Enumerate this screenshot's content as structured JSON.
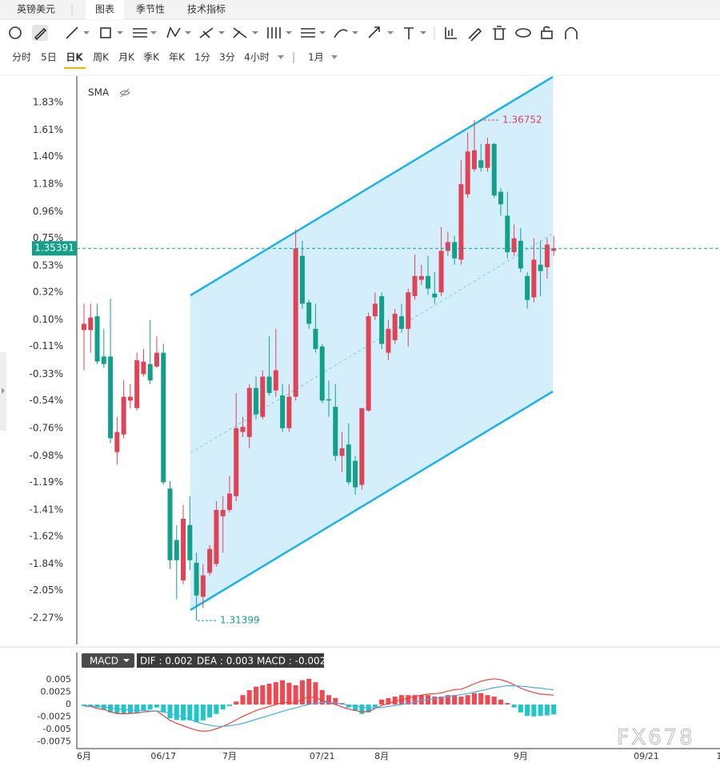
{
  "tabs": {
    "symbol": "英镑美元",
    "items": [
      "图表",
      "季节性",
      "技术指标"
    ]
  },
  "timeframes": [
    "分时",
    "5日",
    "日K",
    "周K",
    "月K",
    "季K",
    "年K",
    "1分",
    "3分",
    "4小时"
  ],
  "range": "1月",
  "watermark": "FX678",
  "chart_data": [
    {
      "type": "candlestick",
      "indicator": "SMA",
      "ylim": [
        -2.48,
        2.04
      ],
      "yticks": [
        {
          "value": 1.83,
          "label": "1.83%"
        },
        {
          "value": 1.61,
          "label": "1.61%"
        },
        {
          "value": 1.4,
          "label": "1.40%"
        },
        {
          "value": 1.18,
          "label": "1.18%"
        },
        {
          "value": 0.96,
          "label": "0.96%"
        },
        {
          "value": 0.75,
          "label": "0.75%"
        },
        {
          "value": 0.53,
          "label": "0.53%"
        },
        {
          "value": 0.32,
          "label": "0.32%"
        },
        {
          "value": 0.1,
          "label": "0.10%"
        },
        {
          "value": -0.11,
          "label": "-0.11%"
        },
        {
          "value": -0.33,
          "label": "-0.33%"
        },
        {
          "value": -0.54,
          "label": "-0.54%"
        },
        {
          "value": -0.76,
          "label": "-0.76%"
        },
        {
          "value": -0.98,
          "label": "-0.98%"
        },
        {
          "value": -1.19,
          "label": "-1.19%"
        },
        {
          "value": -1.41,
          "label": "-1.41%"
        },
        {
          "value": -1.62,
          "label": "-1.62%"
        },
        {
          "value": -1.84,
          "label": "-1.84%"
        },
        {
          "value": -2.05,
          "label": "-2.05%"
        },
        {
          "value": -2.27,
          "label": "-2.27%"
        }
      ],
      "colors": {
        "up": "#e04356",
        "down": "#12a08a"
      },
      "open": [
        0.02,
        0.02,
        0.13,
        -0.19,
        -0.19,
        -0.95,
        -0.81,
        -0.54,
        -0.6,
        -0.33,
        -0.25,
        -0.27,
        -0.16,
        -1.24,
        -1.65,
        -1.97,
        -1.53,
        -1.83,
        -2.1,
        -1.91,
        -1.84,
        -1.46,
        -1.41,
        -1.3,
        -0.79,
        -0.83,
        -0.44,
        -0.67,
        -0.35,
        -0.46,
        -0.5,
        -0.76,
        -0.51,
        0.61,
        0.24,
        0.03,
        -0.11,
        -0.53,
        -0.59,
        -0.98,
        -0.89,
        -1.02,
        -1.21,
        -0.62,
        0.13,
        0.29,
        -0.16,
        -0.06,
        0.13,
        0.03,
        0.29,
        0.42,
        0.45,
        0.31,
        0.32,
        0.65,
        0.72,
        0.58,
        1.1,
        1.3,
        1.37,
        1.31,
        1.5,
        1.12,
        0.93,
        0.64,
        0.73,
        0.45,
        0.28,
        0.54,
        0.52,
        0.65
      ],
      "high": [
        0.23,
        0.23,
        0.23,
        0.03,
        0.27,
        -0.67,
        -0.38,
        -0.41,
        -0.16,
        -0.13,
        0.1,
        -0.03,
        -0.09,
        -1.18,
        -1.53,
        -1.37,
        -1.3,
        -1.75,
        -1.84,
        -1.69,
        -1.34,
        -1.3,
        -1.14,
        -0.48,
        -0.67,
        -0.41,
        -0.35,
        -0.3,
        -0.03,
        0.03,
        -0.41,
        -0.41,
        0.82,
        0.73,
        0.26,
        0.23,
        -0.09,
        -0.38,
        -0.41,
        -0.79,
        -0.72,
        -0.98,
        -0.6,
        0.16,
        0.32,
        0.32,
        0.1,
        0.19,
        0.23,
        0.35,
        0.62,
        0.54,
        0.61,
        0.48,
        0.84,
        0.8,
        0.77,
        1.37,
        1.59,
        1.69,
        1.5,
        1.55,
        1.51,
        1.15,
        1.12,
        0.86,
        0.83,
        0.48,
        0.75,
        0.73,
        0.75,
        0.77
      ],
      "low": [
        -0.3,
        -0.16,
        -0.25,
        -0.28,
        -0.88,
        -1.05,
        -0.84,
        -0.6,
        -0.62,
        -0.35,
        -0.41,
        -0.28,
        -1.21,
        -1.88,
        -2.12,
        -2.0,
        -1.89,
        -2.29,
        -2.19,
        -1.93,
        -1.86,
        -1.75,
        -1.43,
        -1.34,
        -0.83,
        -0.92,
        -0.69,
        -0.69,
        -0.5,
        -0.51,
        -0.79,
        -0.79,
        -0.54,
        0.19,
        0.03,
        -0.16,
        -0.56,
        -0.67,
        -1.02,
        -1.11,
        -1.21,
        -1.29,
        -1.25,
        -0.63,
        0.1,
        -0.13,
        -0.22,
        -0.09,
        0.0,
        -0.11,
        0.26,
        0.38,
        0.3,
        0.23,
        0.29,
        0.61,
        0.54,
        0.54,
        1.07,
        1.28,
        1.28,
        1.28,
        1.07,
        0.93,
        0.59,
        0.61,
        0.48,
        0.19,
        0.24,
        0.29,
        0.43,
        0.61
      ],
      "close": [
        0.07,
        0.12,
        -0.23,
        -0.25,
        -0.84,
        -0.79,
        -0.51,
        -0.51,
        -0.22,
        -0.23,
        -0.38,
        -0.16,
        -1.19,
        -1.81,
        -1.81,
        -1.48,
        -1.81,
        -2.09,
        -1.93,
        -1.72,
        -1.41,
        -1.41,
        -1.28,
        -0.76,
        -0.75,
        -0.44,
        -0.65,
        -0.35,
        -0.48,
        -0.3,
        -0.76,
        -0.51,
        0.67,
        0.23,
        0.07,
        -0.13,
        -0.54,
        -0.54,
        -0.98,
        -0.92,
        -1.19,
        -1.23,
        -0.6,
        0.13,
        0.23,
        -0.09,
        0.03,
        0.15,
        0.03,
        0.32,
        0.45,
        0.45,
        0.35,
        0.28,
        0.65,
        0.72,
        0.59,
        1.18,
        1.44,
        1.45,
        1.31,
        1.5,
        1.09,
        1.02,
        0.64,
        0.75,
        0.51,
        0.26,
        0.58,
        0.49,
        0.7,
        0.67
      ],
      "annotations": [
        {
          "value": 1.69,
          "label": "1.36752"
        },
        {
          "value": -2.29,
          "label": "1.31399"
        }
      ],
      "last_price": {
        "value": 0.67,
        "label": "1.35391"
      }
    },
    {
      "type": "macd",
      "indicator": "MACD",
      "legend": [
        "DIF : 0.002",
        "DEA : 0.003",
        "MACD : -0.002"
      ],
      "categories": [
        "6月",
        null,
        null,
        null,
        null,
        null,
        null,
        null,
        null,
        null,
        null,
        null,
        "06/17",
        null,
        null,
        null,
        null,
        null,
        null,
        null,
        null,
        null,
        "7月",
        null,
        null,
        null,
        null,
        null,
        null,
        null,
        null,
        null,
        null,
        null,
        null,
        null,
        "07/21",
        null,
        null,
        null,
        null,
        null,
        null,
        null,
        null,
        "8月",
        null,
        null,
        null,
        null,
        null,
        null,
        null,
        null,
        null,
        null,
        null,
        null,
        null,
        null,
        null,
        null,
        null,
        null,
        null,
        null,
        "9月",
        null,
        null,
        null,
        null,
        null,
        null,
        null,
        null,
        null,
        null,
        null,
        null,
        null,
        null,
        null,
        null,
        null,
        null,
        "09/21",
        null,
        null,
        null,
        null,
        null,
        null,
        null,
        null,
        null,
        null,
        "1"
      ],
      "ylim": [
        -0.0089,
        0.0105
      ],
      "yticks": [
        0.005,
        0.0025,
        0,
        -0.0025,
        -0.005,
        -0.0075
      ],
      "histogram": {
        "colors": {
          "up": "#f04850",
          "down": "#1ec8c8"
        },
        "values": [
          -0.0003,
          -0.0005,
          -0.0006,
          -0.001,
          -0.0016,
          -0.0019,
          -0.0019,
          -0.0018,
          -0.0016,
          -0.0013,
          -0.001,
          -0.0006,
          -0.0016,
          -0.0028,
          -0.0031,
          -0.0032,
          -0.0032,
          -0.0036,
          -0.0032,
          -0.0026,
          -0.0019,
          -0.001,
          -0.0003,
          0.0006,
          0.0019,
          0.0029,
          0.0036,
          0.0039,
          0.0042,
          0.0045,
          0.0049,
          0.0044,
          0.0039,
          0.0049,
          0.0052,
          0.0045,
          0.0029,
          0.0019,
          0.0013,
          0.0003,
          -0.0006,
          -0.0013,
          -0.0019,
          -0.0016,
          -0.0006,
          0.001,
          0.0013,
          0.0016,
          0.0019,
          0.0019,
          0.0019,
          0.0019,
          0.0019,
          0.0016,
          0.0016,
          0.0019,
          0.0019,
          0.0016,
          0.0019,
          0.0023,
          0.0023,
          0.0019,
          0.0016,
          0.001,
          0.0003,
          -0.0006,
          -0.0016,
          -0.0023,
          -0.0024,
          -0.0023,
          -0.0022,
          -0.002,
          null,
          null,
          null,
          null,
          null,
          null,
          null,
          null,
          null,
          null,
          null,
          null,
          null,
          null,
          null,
          null,
          null,
          null,
          null,
          null,
          null,
          null,
          null,
          null,
          null
        ]
      },
      "lines": [
        {
          "color": "#e8453c",
          "values": [
            -0.0003,
            -0.0004,
            -0.0008,
            -0.001,
            -0.0015,
            -0.0018,
            -0.0019,
            -0.0018,
            -0.0017,
            -0.0015,
            -0.0014,
            -0.0013,
            -0.0022,
            -0.0032,
            -0.0038,
            -0.0043,
            -0.0048,
            -0.0052,
            -0.0054,
            -0.0053,
            -0.0049,
            -0.0044,
            -0.0038,
            -0.0031,
            -0.0024,
            -0.0018,
            -0.0012,
            -0.0008,
            -0.0004,
            0,
            0.0004,
            0.0004,
            0.0003,
            0.0012,
            0.0015,
            0.0014,
            0.0008,
            0.0004,
            0,
            -0.0005,
            -0.0009,
            -0.0012,
            -0.0015,
            -0.0014,
            -0.0008,
            -0.0002,
            0.0002,
            0.0006,
            0.001,
            0.0013,
            0.0016,
            0.0019,
            0.0021,
            0.0022,
            0.0023,
            0.0027,
            0.003,
            0.0031,
            0.0036,
            0.0042,
            0.0047,
            0.005,
            0.0052,
            0.005,
            0.0046,
            0.004,
            0.0033,
            0.0028,
            0.0024,
            0.0021,
            0.002,
            0.0019,
            null,
            null,
            null,
            null,
            null,
            null,
            null,
            null,
            null,
            null,
            null,
            null,
            null,
            null,
            null,
            null,
            null,
            null,
            null,
            null,
            null,
            null,
            null,
            null,
            null
          ]
        },
        {
          "color": "#45aee6",
          "values": [
            -0.0002,
            -0.0003,
            -0.0004,
            -0.0005,
            -0.0007,
            -0.0009,
            -0.001,
            -0.0011,
            -0.0012,
            -0.0012,
            -0.0013,
            -0.0013,
            -0.0015,
            -0.0018,
            -0.0022,
            -0.0026,
            -0.003,
            -0.0035,
            -0.0039,
            -0.0042,
            -0.0044,
            -0.0044,
            -0.0043,
            -0.0041,
            -0.0038,
            -0.0034,
            -0.003,
            -0.0026,
            -0.0022,
            -0.0018,
            -0.0014,
            -0.001,
            -0.0007,
            -0.0003,
            0,
            0.0003,
            0.0004,
            0.0004,
            0.0003,
            0.0001,
            -0.0001,
            -0.0003,
            -0.0005,
            -0.0007,
            -0.0007,
            -0.0006,
            -0.0004,
            -0.0002,
            0,
            0.0002,
            0.0005,
            0.0008,
            0.001,
            0.0012,
            0.0014,
            0.0016,
            0.0018,
            0.002,
            0.0022,
            0.0025,
            0.0028,
            0.0031,
            0.0034,
            0.0036,
            0.0038,
            0.0038,
            0.0037,
            0.0036,
            0.0034,
            0.0033,
            0.0031,
            0.003,
            null,
            null,
            null,
            null,
            null,
            null,
            null,
            null,
            null,
            null,
            null,
            null,
            null,
            null,
            null,
            null,
            null,
            null,
            null,
            null,
            null,
            null,
            null,
            null,
            null
          ]
        }
      ]
    }
  ]
}
